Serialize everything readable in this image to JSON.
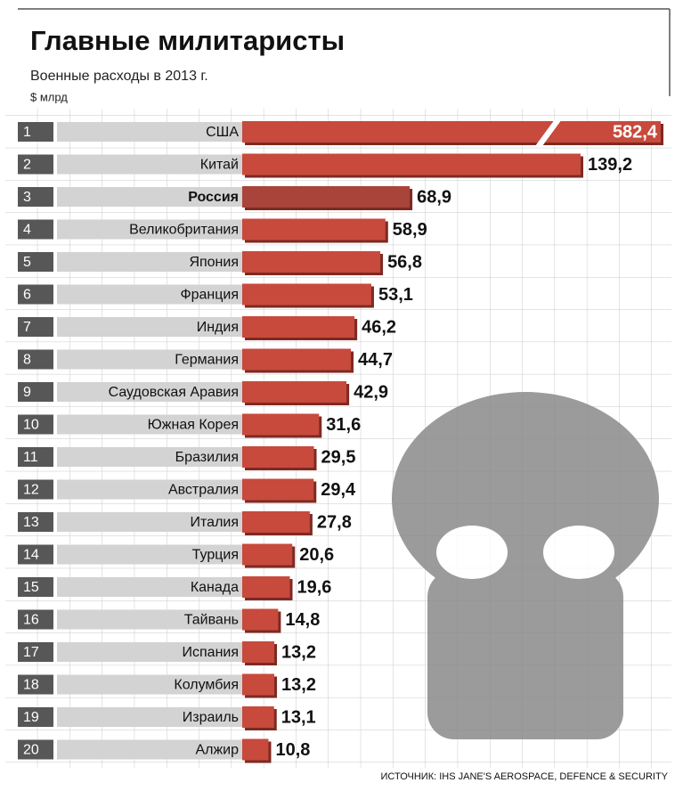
{
  "chart_data": {
    "type": "bar",
    "orientation": "horizontal",
    "title": "Главные милитаристы",
    "subtitle": "Военные расходы в 2013 г.",
    "unit": "$ млрд",
    "source": "ИСТОЧНИК: IHS JANE'S AEROSPACE, DEFENCE & SECURITY",
    "ranks": [
      1,
      2,
      3,
      4,
      5,
      6,
      7,
      8,
      9,
      10,
      11,
      12,
      13,
      14,
      15,
      16,
      17,
      18,
      19,
      20
    ],
    "categories": [
      "США",
      "Китай",
      "Россия",
      "Великобритания",
      "Япония",
      "Франция",
      "Индия",
      "Германия",
      "Саудовская Аравия",
      "Южная Корея",
      "Бразилия",
      "Австралия",
      "Италия",
      "Турция",
      "Канада",
      "Тайвань",
      "Испания",
      "Колумбия",
      "Израиль",
      "Алжир"
    ],
    "values": [
      582.4,
      139.2,
      68.9,
      58.9,
      56.8,
      53.1,
      46.2,
      44.7,
      42.9,
      31.6,
      29.5,
      29.4,
      27.8,
      20.6,
      19.6,
      14.8,
      13.2,
      13.2,
      13.1,
      10.8
    ],
    "value_labels": [
      "582,4",
      "139,2",
      "68,9",
      "58,9",
      "56,8",
      "53,1",
      "46,2",
      "44,7",
      "42,9",
      "31,6",
      "29,5",
      "29,4",
      "27,8",
      "20,6",
      "19,6",
      "14,8",
      "13,2",
      "13,2",
      "13,1",
      "10,8"
    ],
    "color": "#c74a3d",
    "bar_colors": [
      "#c74a3d",
      "#c74a3d",
      "#a8443a",
      "#c74a3d",
      "#c74a3d",
      "#c74a3d",
      "#c74a3d",
      "#c74a3d",
      "#c74a3d",
      "#c74a3d",
      "#c74a3d",
      "#c74a3d",
      "#c74a3d",
      "#c74a3d",
      "#c74a3d",
      "#c74a3d",
      "#c74a3d",
      "#c74a3d",
      "#c74a3d",
      "#c74a3d"
    ],
    "grid": true
  }
}
